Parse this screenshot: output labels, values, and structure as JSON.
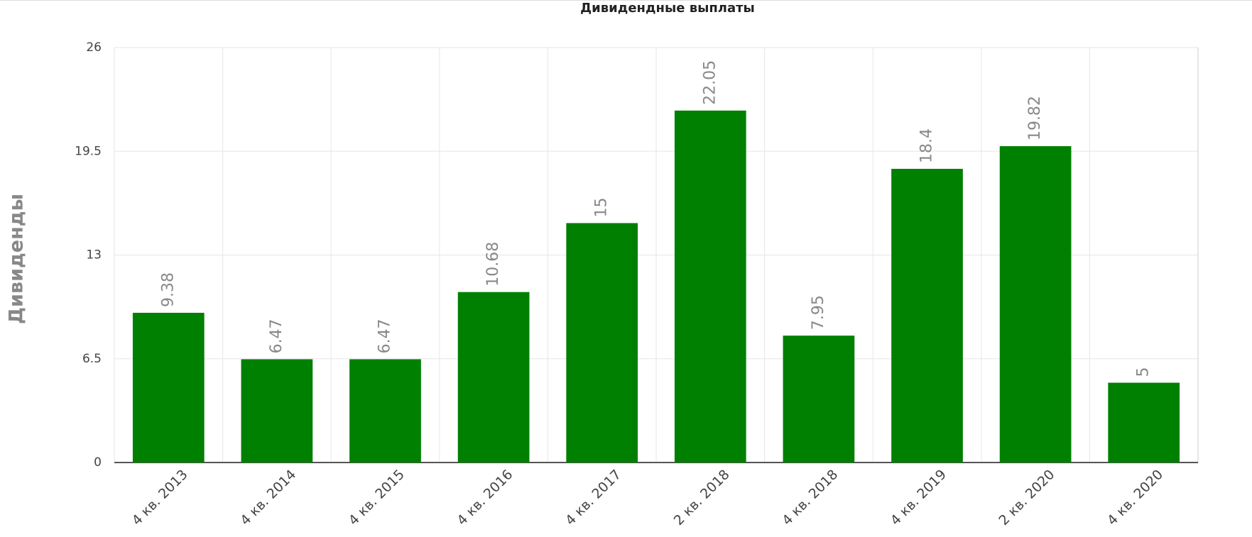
{
  "chart_data": {
    "type": "bar",
    "title": "Дивидендные выплаты",
    "y_label": "Дивиденды",
    "categories": [
      "4 кв. 2013",
      "4 кв. 2014",
      "4 кв. 2015",
      "4 кв. 2016",
      "4 кв. 2017",
      "2 кв. 2018",
      "4 кв. 2018",
      "4 кв. 2019",
      "2 кв. 2020",
      "4 кв. 2020"
    ],
    "values": [
      9.38,
      6.47,
      6.47,
      10.68,
      15,
      22.05,
      7.95,
      18.4,
      19.82,
      5
    ],
    "color": "#008000",
    "ylim": [
      0,
      26
    ],
    "yticks": [
      0,
      6.5,
      13,
      19.5,
      26
    ],
    "grid": true
  }
}
